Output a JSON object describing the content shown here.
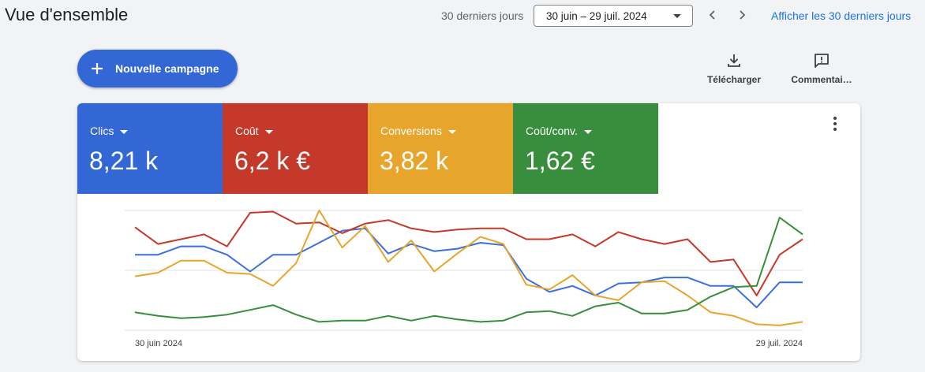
{
  "header": {
    "title": "Vue d'ensemble",
    "range_label": "30 derniers jours",
    "date_range": "30 juin – 29 juil. 2024",
    "show_link": "Afficher les 30 derniers jours",
    "prev_icon": "chevron-left-icon",
    "next_icon": "chevron-right-icon"
  },
  "actions": {
    "new_campaign": "Nouvelle campagne",
    "download": "Télécharger",
    "comment": "Commentai…"
  },
  "metrics": [
    {
      "name": "Clics",
      "value": "8,21 k",
      "color": "#3367d6"
    },
    {
      "name": "Coût",
      "value": "6,2 k €",
      "color": "#c5392a"
    },
    {
      "name": "Conversions",
      "value": "3,82 k",
      "color": "#e8a52b"
    },
    {
      "name": "Coût/conv.",
      "value": "1,62 €",
      "color": "#388e3c"
    }
  ],
  "chart_data": {
    "type": "line",
    "x_start_label": "30 juin 2024",
    "x_end_label": "29 juil. 2024",
    "y_axis_labels": "none",
    "grid": "horizontal",
    "series": [
      {
        "name": "Clics",
        "color": "#3b6fe0",
        "values": [
          0.63,
          0.63,
          0.7,
          0.7,
          0.63,
          0.49,
          0.63,
          0.63,
          0.73,
          0.83,
          0.85,
          0.64,
          0.72,
          0.66,
          0.68,
          0.73,
          0.71,
          0.43,
          0.32,
          0.37,
          0.29,
          0.39,
          0.4,
          0.44,
          0.44,
          0.37,
          0.37,
          0.19,
          0.4,
          0.4
        ]
      },
      {
        "name": "Coût",
        "color": "#c5392a",
        "values": [
          0.86,
          0.72,
          0.76,
          0.8,
          0.7,
          0.98,
          0.99,
          0.89,
          0.9,
          0.81,
          0.89,
          0.92,
          0.85,
          0.82,
          0.84,
          0.85,
          0.85,
          0.76,
          0.76,
          0.8,
          0.7,
          0.82,
          0.76,
          0.72,
          0.76,
          0.57,
          0.59,
          0.29,
          0.63,
          0.76
        ]
      },
      {
        "name": "Conversions",
        "color": "#e8a52b",
        "values": [
          0.45,
          0.48,
          0.58,
          0.58,
          0.48,
          0.47,
          0.37,
          0.56,
          1.0,
          0.69,
          0.87,
          0.57,
          0.75,
          0.49,
          0.64,
          0.78,
          0.72,
          0.38,
          0.34,
          0.46,
          0.29,
          0.25,
          0.4,
          0.41,
          0.29,
          0.15,
          0.12,
          0.05,
          0.04,
          0.07
        ]
      },
      {
        "name": "Coût/conv.",
        "color": "#388e3c",
        "values": [
          0.15,
          0.12,
          0.1,
          0.11,
          0.13,
          0.17,
          0.21,
          0.13,
          0.07,
          0.08,
          0.08,
          0.12,
          0.08,
          0.12,
          0.09,
          0.07,
          0.08,
          0.15,
          0.16,
          0.12,
          0.2,
          0.23,
          0.14,
          0.14,
          0.17,
          0.28,
          0.36,
          0.37,
          0.94,
          0.8
        ]
      }
    ]
  },
  "icons": {
    "plus": "plus-icon",
    "download": "download-icon",
    "comment": "comment-icon",
    "more": "more-vert-icon",
    "dropdown": "caret-down-icon"
  }
}
